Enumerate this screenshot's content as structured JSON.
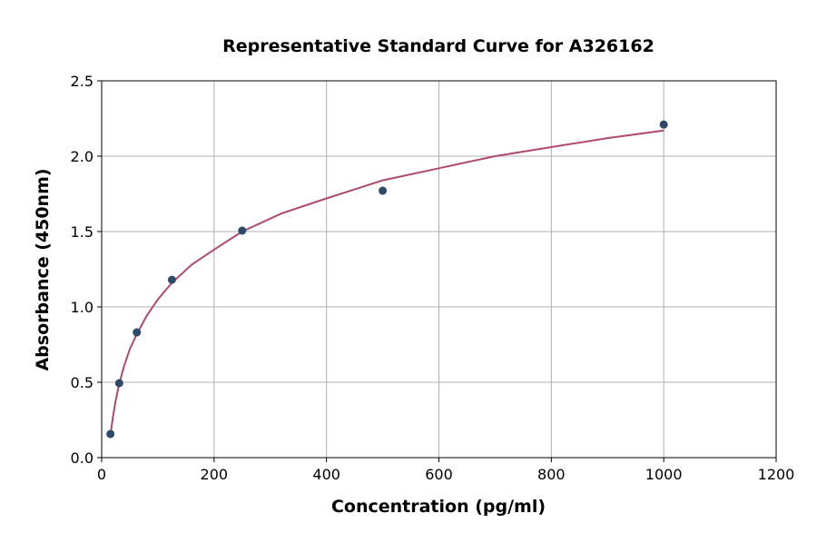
{
  "chart_data": {
    "type": "scatter",
    "title": "Representative Standard Curve for A326162",
    "xlabel": "Concentration (pg/ml)",
    "ylabel": "Absorbance (450nm)",
    "xlim": [
      0,
      1200
    ],
    "ylim": [
      0,
      2.5
    ],
    "xticks": [
      0,
      200,
      400,
      600,
      800,
      1000,
      1200
    ],
    "yticks": [
      "0.0",
      "0.5",
      "1.0",
      "1.5",
      "2.0",
      "2.5"
    ],
    "grid": true,
    "series": [
      {
        "x": [
          15.6,
          31.25,
          62.5,
          125,
          250,
          500,
          1000
        ],
        "y": [
          0.157,
          0.494,
          0.831,
          1.18,
          1.506,
          1.771,
          2.21
        ],
        "color": "#2e4a6b"
      }
    ],
    "fit_curve": {
      "x": [
        15.6,
        20,
        25,
        31.25,
        40,
        50,
        62.5,
        80,
        100,
        125,
        160,
        200,
        250,
        320,
        400,
        500,
        600,
        700,
        800,
        900,
        1000
      ],
      "y": [
        0.15,
        0.27,
        0.38,
        0.49,
        0.61,
        0.72,
        0.82,
        0.94,
        1.05,
        1.16,
        1.28,
        1.38,
        1.5,
        1.62,
        1.72,
        1.84,
        1.92,
        2.0,
        2.06,
        2.12,
        2.17
      ],
      "color": "#b0496b"
    }
  }
}
